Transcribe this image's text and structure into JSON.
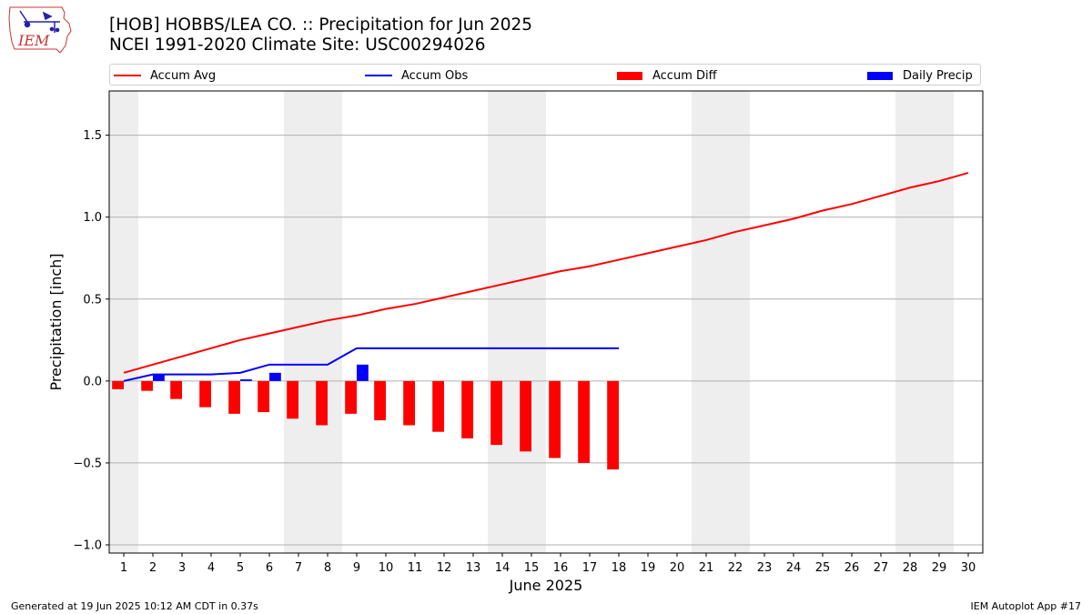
{
  "header": {
    "title_line1": "[HOB] HOBBS/LEA CO. :: Precipitation for Jun 2025",
    "title_line2": "NCEI 1991-2020 Climate Site: USC00294026"
  },
  "logo": {
    "text": "IEM"
  },
  "footer": {
    "left": "Generated at 19 Jun 2025 10:12 AM CDT in 0.37s",
    "right": "IEM Autoplot App #17"
  },
  "colors": {
    "avg": "#ff0000",
    "obs": "#0000ff",
    "diff": "#ff0000",
    "daily": "#0000ff",
    "weekend": "#eeeeee",
    "grid": "#b0b0b0"
  },
  "chart_data": {
    "type": "bar",
    "xlabel": "June 2025",
    "ylabel": "Precipitation [inch]",
    "ylim": [
      -1.05,
      1.77
    ],
    "yticks": [
      -1.0,
      -0.5,
      0.0,
      0.5,
      1.0,
      1.5
    ],
    "ytick_labels": [
      "−1.0",
      "−0.5",
      "0.0",
      "0.5",
      "1.0",
      "1.5"
    ],
    "xlim": [
      0.5,
      30.5
    ],
    "days": [
      1,
      2,
      3,
      4,
      5,
      6,
      7,
      8,
      9,
      10,
      11,
      12,
      13,
      14,
      15,
      16,
      17,
      18,
      19,
      20,
      21,
      22,
      23,
      24,
      25,
      26,
      27,
      28,
      29,
      30
    ],
    "weekend_days": [
      1,
      7,
      8,
      14,
      15,
      21,
      22,
      28,
      29
    ],
    "grid": "horizontal",
    "legend_placement": "top",
    "series": [
      {
        "name": "Accum Avg",
        "kind": "line",
        "values": [
          0.05,
          0.1,
          0.15,
          0.2,
          0.25,
          0.29,
          0.33,
          0.37,
          0.4,
          0.44,
          0.47,
          0.51,
          0.55,
          0.59,
          0.63,
          0.67,
          0.7,
          0.74,
          0.78,
          0.82,
          0.86,
          0.91,
          0.95,
          0.99,
          1.04,
          1.08,
          1.13,
          1.18,
          1.22,
          1.27
        ]
      },
      {
        "name": "Accum Obs",
        "kind": "line",
        "values": [
          0.0,
          0.04,
          0.04,
          0.04,
          0.05,
          0.1,
          0.1,
          0.1,
          0.2,
          0.2,
          0.2,
          0.2,
          0.2,
          0.2,
          0.2,
          0.2,
          0.2,
          0.2
        ]
      },
      {
        "name": "Accum Diff",
        "kind": "bar",
        "values": [
          -0.05,
          -0.06,
          -0.11,
          -0.16,
          -0.2,
          -0.19,
          -0.23,
          -0.27,
          -0.2,
          -0.24,
          -0.27,
          -0.31,
          -0.35,
          -0.39,
          -0.43,
          -0.47,
          -0.5,
          -0.54
        ]
      },
      {
        "name": "Daily Precip",
        "kind": "bar",
        "values": [
          0.0,
          0.04,
          0.0,
          0.0,
          0.01,
          0.05,
          0.0,
          0.0,
          0.1,
          0.0,
          0.0,
          0.0,
          0.0,
          0.0,
          0.0,
          0.0,
          0.0,
          0.0
        ]
      }
    ]
  }
}
